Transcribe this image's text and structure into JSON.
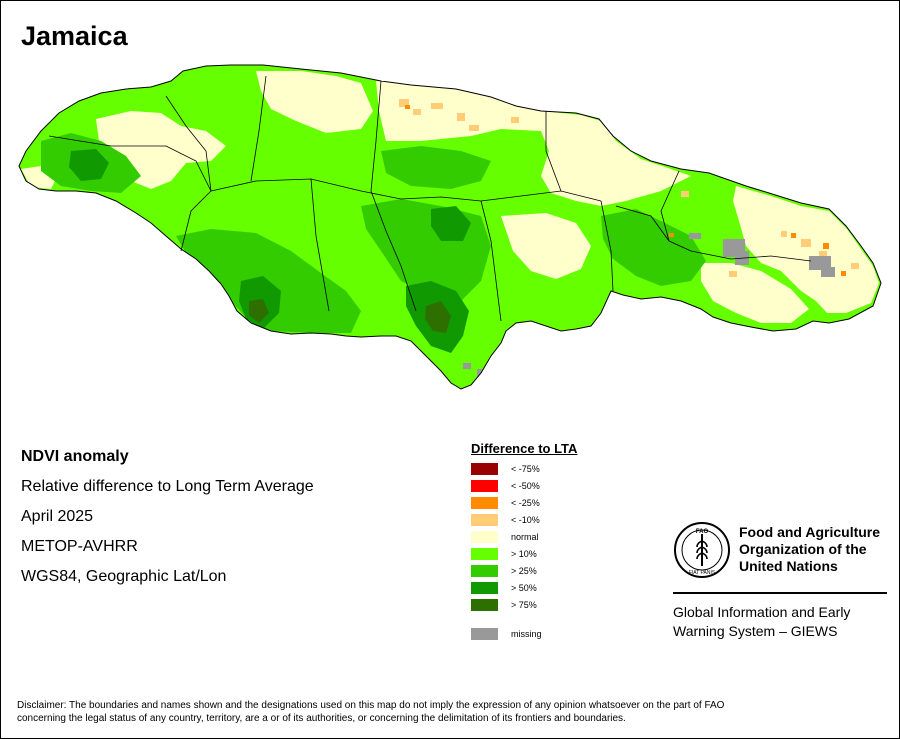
{
  "map": {
    "title": "Jamaica",
    "info": {
      "heading": "NDVI anomaly",
      "subtitle": "Relative difference to Long Term Average",
      "period": "April 2025",
      "sensor": "METOP-AVHRR",
      "projection": "WGS84, Geographic Lat/Lon"
    },
    "legend": {
      "title": "Difference to LTA",
      "items": [
        {
          "label": "< -75%",
          "color": "#990000"
        },
        {
          "label": "< -50%",
          "color": "#ff0000"
        },
        {
          "label": "< -25%",
          "color": "#ff8c00"
        },
        {
          "label": "< -10%",
          "color": "#ffcc77"
        },
        {
          "label": "normal",
          "color": "#ffffcc"
        },
        {
          "label": "> 10%",
          "color": "#66ff00"
        },
        {
          "label": "> 25%",
          "color": "#33cc00"
        },
        {
          "label": "> 50%",
          "color": "#109900"
        },
        {
          "label": "> 75%",
          "color": "#2e7000"
        }
      ],
      "missing": {
        "label": "missing",
        "color": "#999999"
      }
    },
    "organization": {
      "name_line1": "Food and Agriculture",
      "name_line2": "Organization of the",
      "name_line3": "United Nations",
      "logo_text": "FAO",
      "logo_motto": "FIAT PANIS",
      "system_line1": "Global Information and Early",
      "system_line2": "Warning System – GIEWS"
    },
    "disclaimer": {
      "line1": "Disclaimer: The boundaries and names shown and the designations used on this map do not imply the expression of any opinion whatsoever on the part of FAO",
      "line2": "concerning the legal status of any country, territory, are a or of its authorities, or concerning the delimitation of its frontiers and boundaries."
    },
    "colors": {
      "background": "#ffffff",
      "normal": "#ffffcc",
      "gt10": "#66ff00",
      "gt25": "#33cc00",
      "gt50": "#109900",
      "gt75": "#2e7000",
      "lt10": "#ffcc77",
      "lt25": "#ff8c00",
      "lt50": "#ff0000",
      "missing": "#999999"
    }
  }
}
